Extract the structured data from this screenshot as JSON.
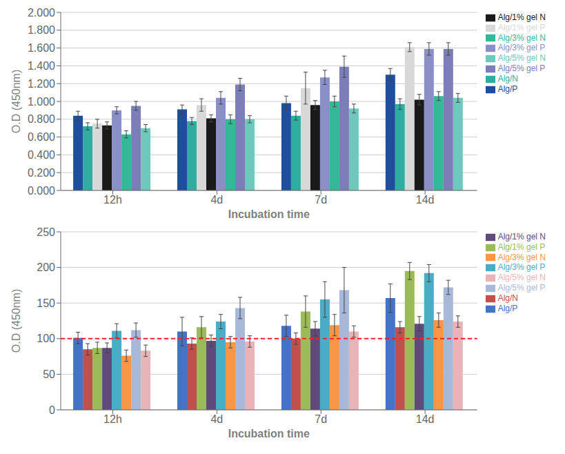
{
  "chart_data": [
    {
      "type": "bar",
      "xlabel": "Incubation time",
      "ylabel": "O.D (450nm)",
      "categories": [
        "12h",
        "4d",
        "7d",
        "14d"
      ],
      "series": [
        {
          "name": "Alg/P",
          "color": "#1F4E9C",
          "values": [
            0.84,
            0.91,
            0.98,
            1.3
          ],
          "errors": [
            0.05,
            0.05,
            0.08,
            0.07
          ]
        },
        {
          "name": "Alg/N",
          "color": "#2EADA0",
          "values": [
            0.72,
            0.78,
            0.84,
            0.97
          ],
          "errors": [
            0.04,
            0.04,
            0.05,
            0.06
          ]
        },
        {
          "name": "Alg/1% gel P",
          "color": "#D8D8D8",
          "values": [
            0.75,
            0.96,
            1.15,
            1.61
          ],
          "errors": [
            0.05,
            0.07,
            0.18,
            0.05
          ]
        },
        {
          "name": "Alg/1% gel N",
          "color": "#1A1A1A",
          "values": [
            0.73,
            0.81,
            0.96,
            1.02
          ],
          "errors": [
            0.04,
            0.04,
            0.05,
            0.06
          ]
        },
        {
          "name": "Alg/3% gel P",
          "color": "#8B8FC8",
          "values": [
            0.9,
            1.04,
            1.27,
            1.59
          ],
          "errors": [
            0.04,
            0.07,
            0.08,
            0.07
          ]
        },
        {
          "name": "Alg/3% gel N",
          "color": "#35B896",
          "values": [
            0.63,
            0.8,
            1.0,
            1.06
          ],
          "errors": [
            0.04,
            0.05,
            0.06,
            0.05
          ]
        },
        {
          "name": "Alg/5% gel P",
          "color": "#7B7EB8",
          "values": [
            0.95,
            1.19,
            1.39,
            1.59
          ],
          "errors": [
            0.05,
            0.07,
            0.12,
            0.07
          ]
        },
        {
          "name": "Alg/5% gel N",
          "color": "#6EC8BB",
          "values": [
            0.7,
            0.8,
            0.92,
            1.04
          ],
          "errors": [
            0.04,
            0.04,
            0.05,
            0.05
          ]
        }
      ],
      "ylim": [
        0.0,
        2.0
      ],
      "yticks": [
        {
          "value": 0.0,
          "label": "0.000"
        },
        {
          "value": 0.2,
          "label": "0.200"
        },
        {
          "value": 0.4,
          "label": "0.400"
        },
        {
          "value": 0.6,
          "label": "0.600"
        },
        {
          "value": 0.8,
          "label": "0.800"
        },
        {
          "value": 1.0,
          "label": "1.000"
        },
        {
          "value": 1.2,
          "label": "1.200"
        },
        {
          "value": 1.4,
          "label": "1.400"
        },
        {
          "value": 1.6,
          "label": "1.600"
        },
        {
          "value": 1.8,
          "label": "1.800"
        },
        {
          "value": 2.0,
          "label": "2.000"
        }
      ],
      "grid": true,
      "legend": "right"
    },
    {
      "type": "bar",
      "xlabel": "Incubation time",
      "ylabel": "O.D (450nm)",
      "categories": [
        "12h",
        "4d",
        "7d",
        "14d"
      ],
      "series": [
        {
          "name": "Alg/P",
          "color": "#4472C4",
          "values": [
            101,
            110,
            118,
            157
          ],
          "errors": [
            8,
            20,
            15,
            20
          ]
        },
        {
          "name": "Alg/N",
          "color": "#C0504D",
          "values": [
            85,
            93,
            100,
            116
          ],
          "errors": [
            8,
            8,
            8,
            8
          ]
        },
        {
          "name": "Alg/1% gel P",
          "color": "#9BBB59",
          "values": [
            87,
            116,
            138,
            195
          ],
          "errors": [
            8,
            15,
            22,
            12
          ]
        },
        {
          "name": "Alg/1% gel N",
          "color": "#604A7B",
          "values": [
            87,
            97,
            114,
            121
          ],
          "errors": [
            7,
            8,
            10,
            10
          ]
        },
        {
          "name": "Alg/3% gel P",
          "color": "#4BACC6",
          "values": [
            111,
            124,
            155,
            192
          ],
          "errors": [
            10,
            10,
            25,
            12
          ]
        },
        {
          "name": "Alg/3% gel N",
          "color": "#F79646",
          "values": [
            76,
            95,
            119,
            126
          ],
          "errors": [
            8,
            8,
            15,
            10
          ]
        },
        {
          "name": "Alg/5% gel P",
          "color": "#A8B8D8",
          "values": [
            112,
            143,
            168,
            172
          ],
          "errors": [
            10,
            15,
            32,
            10
          ]
        },
        {
          "name": "Alg/5% gel N",
          "color": "#E8B4B8",
          "values": [
            83,
            96,
            110,
            124
          ],
          "errors": [
            8,
            8,
            8,
            8
          ]
        }
      ],
      "ylim": [
        0,
        250
      ],
      "yticks": [
        0,
        50,
        100,
        150,
        200,
        250
      ],
      "hline": {
        "value": 100,
        "color": "#FF2222",
        "line_style": "dashed"
      },
      "grid": true,
      "legend": "right"
    }
  ]
}
